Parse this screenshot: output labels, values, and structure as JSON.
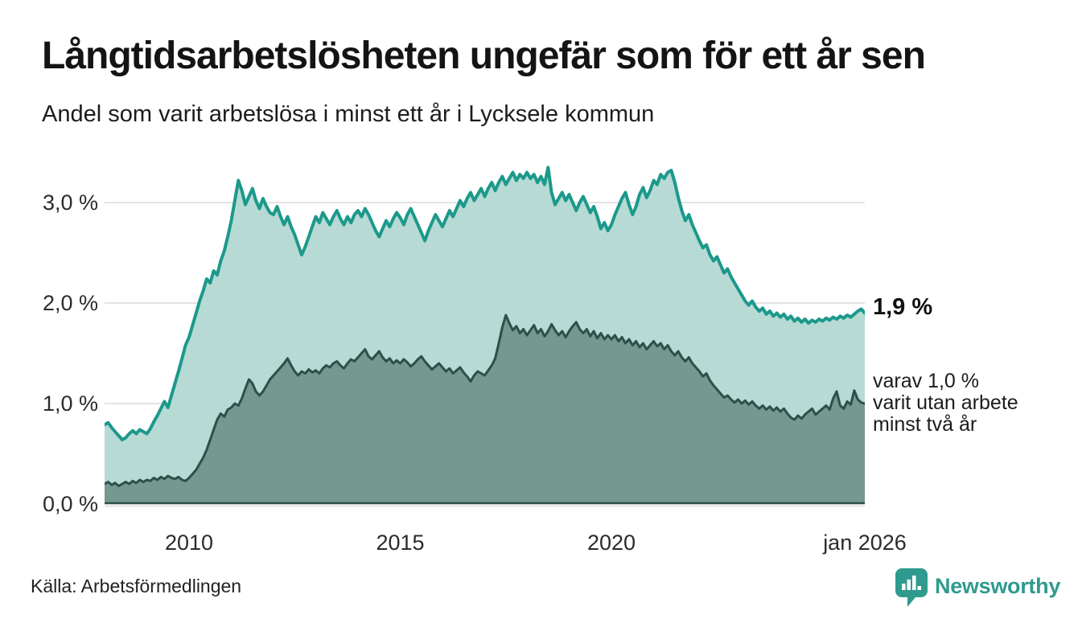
{
  "header": {
    "title": "Långtidsarbetslösheten ungefär som för ett år sen",
    "subtitle": "Andel som varit arbetslösa i minst ett år i Lycksele kommun"
  },
  "footer": {
    "source": "Källa: Arbetsförmedlingen",
    "brand": "Newsworthy"
  },
  "colors": {
    "background": "#ffffff",
    "grid": "#e5e3e3",
    "axis": "#2e4f4a",
    "series1_line": "#1b998b",
    "series1_fill": "#b7dad4",
    "series2_line": "#2e4f4a",
    "series2_fill": "#75988f",
    "brand_teal": "#2E9B8E",
    "text": "#1a1a1a"
  },
  "chart_data": {
    "type": "area",
    "title": "Långtidsarbetslösheten ungefär som för ett år sen",
    "subtitle": "Andel som varit arbetslösa i minst ett år i Lycksele kommun",
    "xlabel": "",
    "ylabel": "",
    "x_start_year": 2008.0,
    "x_end_year": 2026.0,
    "points_per_year": 12,
    "ylim": [
      0,
      3.5
    ],
    "grid": true,
    "legend_position": "none",
    "y_ticks": [
      {
        "label": "0,0 %",
        "value": 0.0
      },
      {
        "label": "1,0 %",
        "value": 1.0
      },
      {
        "label": "2,0 %",
        "value": 2.0
      },
      {
        "label": "3,0 %",
        "value": 3.0
      }
    ],
    "x_ticks": [
      {
        "label": "2010",
        "year": 2010
      },
      {
        "label": "2015",
        "year": 2015
      },
      {
        "label": "2020",
        "year": 2020
      },
      {
        "label": "jan 2026",
        "year": 2026
      }
    ],
    "end_labels": {
      "primary": "1,9 %",
      "secondary_lines": [
        "varav 1,0 %",
        "varit utan arbete",
        "minst två år"
      ]
    },
    "series": [
      {
        "name": "Arbetslösa minst ett år",
        "end_value_label": "1,9 %",
        "line_color": "#1b998b",
        "fill_color": "#b7dad4",
        "line_width": 4,
        "values": [
          0.79,
          0.81,
          0.76,
          0.72,
          0.68,
          0.64,
          0.66,
          0.7,
          0.73,
          0.7,
          0.74,
          0.72,
          0.7,
          0.75,
          0.82,
          0.88,
          0.95,
          1.02,
          0.96,
          1.08,
          1.2,
          1.32,
          1.45,
          1.58,
          1.66,
          1.78,
          1.9,
          2.02,
          2.12,
          2.24,
          2.2,
          2.32,
          2.28,
          2.42,
          2.52,
          2.66,
          2.82,
          3.02,
          3.22,
          3.12,
          2.98,
          3.06,
          3.14,
          3.02,
          2.94,
          3.04,
          2.96,
          2.9,
          2.88,
          2.96,
          2.86,
          2.78,
          2.86,
          2.76,
          2.68,
          2.58,
          2.48,
          2.56,
          2.66,
          2.76,
          2.86,
          2.8,
          2.9,
          2.84,
          2.78,
          2.86,
          2.92,
          2.84,
          2.78,
          2.86,
          2.8,
          2.88,
          2.92,
          2.86,
          2.94,
          2.88,
          2.8,
          2.72,
          2.66,
          2.74,
          2.82,
          2.76,
          2.84,
          2.9,
          2.85,
          2.78,
          2.88,
          2.94,
          2.86,
          2.78,
          2.7,
          2.62,
          2.72,
          2.8,
          2.88,
          2.82,
          2.76,
          2.84,
          2.92,
          2.86,
          2.94,
          3.02,
          2.96,
          3.04,
          3.1,
          3.02,
          3.08,
          3.14,
          3.06,
          3.14,
          3.2,
          3.12,
          3.2,
          3.26,
          3.18,
          3.24,
          3.3,
          3.22,
          3.28,
          3.24,
          3.3,
          3.24,
          3.28,
          3.2,
          3.26,
          3.18,
          3.35,
          3.1,
          2.98,
          3.04,
          3.1,
          3.02,
          3.08,
          3.0,
          2.92,
          3.0,
          3.06,
          2.98,
          2.9,
          2.96,
          2.86,
          2.74,
          2.8,
          2.72,
          2.78,
          2.88,
          2.96,
          3.04,
          3.1,
          2.98,
          2.88,
          2.96,
          3.08,
          3.15,
          3.05,
          3.12,
          3.22,
          3.18,
          3.28,
          3.24,
          3.3,
          3.32,
          3.2,
          3.05,
          2.92,
          2.82,
          2.88,
          2.78,
          2.7,
          2.62,
          2.55,
          2.58,
          2.48,
          2.42,
          2.46,
          2.38,
          2.3,
          2.34,
          2.26,
          2.2,
          2.14,
          2.08,
          2.02,
          1.98,
          2.02,
          1.96,
          1.92,
          1.95,
          1.89,
          1.92,
          1.87,
          1.9,
          1.86,
          1.89,
          1.84,
          1.87,
          1.82,
          1.85,
          1.81,
          1.84,
          1.8,
          1.83,
          1.81,
          1.84,
          1.82,
          1.85,
          1.83,
          1.86,
          1.84,
          1.87,
          1.85,
          1.88,
          1.86,
          1.89,
          1.92,
          1.94,
          1.9
        ]
      },
      {
        "name": "Arbetslösa minst två år",
        "end_value_label": "1,0 %",
        "line_color": "#2e4f4a",
        "fill_color": "#75988f",
        "line_width": 3,
        "values": [
          0.2,
          0.22,
          0.19,
          0.21,
          0.18,
          0.2,
          0.22,
          0.2,
          0.23,
          0.21,
          0.24,
          0.22,
          0.24,
          0.23,
          0.26,
          0.24,
          0.27,
          0.25,
          0.28,
          0.26,
          0.25,
          0.27,
          0.24,
          0.23,
          0.26,
          0.3,
          0.34,
          0.4,
          0.46,
          0.54,
          0.64,
          0.74,
          0.84,
          0.9,
          0.87,
          0.94,
          0.96,
          1.0,
          0.98,
          1.05,
          1.15,
          1.24,
          1.2,
          1.12,
          1.08,
          1.12,
          1.18,
          1.24,
          1.28,
          1.32,
          1.36,
          1.4,
          1.45,
          1.38,
          1.32,
          1.28,
          1.32,
          1.3,
          1.34,
          1.31,
          1.33,
          1.3,
          1.35,
          1.38,
          1.36,
          1.4,
          1.42,
          1.38,
          1.35,
          1.4,
          1.44,
          1.42,
          1.46,
          1.5,
          1.54,
          1.47,
          1.44,
          1.48,
          1.52,
          1.46,
          1.42,
          1.45,
          1.4,
          1.43,
          1.4,
          1.44,
          1.41,
          1.37,
          1.4,
          1.44,
          1.47,
          1.42,
          1.38,
          1.34,
          1.37,
          1.4,
          1.36,
          1.32,
          1.35,
          1.3,
          1.33,
          1.36,
          1.31,
          1.27,
          1.22,
          1.28,
          1.32,
          1.3,
          1.28,
          1.33,
          1.38,
          1.45,
          1.6,
          1.76,
          1.88,
          1.8,
          1.73,
          1.77,
          1.7,
          1.74,
          1.68,
          1.73,
          1.78,
          1.7,
          1.74,
          1.67,
          1.72,
          1.79,
          1.73,
          1.68,
          1.72,
          1.66,
          1.72,
          1.77,
          1.81,
          1.74,
          1.7,
          1.74,
          1.67,
          1.72,
          1.65,
          1.7,
          1.64,
          1.68,
          1.64,
          1.68,
          1.62,
          1.66,
          1.6,
          1.64,
          1.58,
          1.62,
          1.56,
          1.6,
          1.54,
          1.58,
          1.62,
          1.57,
          1.6,
          1.54,
          1.58,
          1.52,
          1.48,
          1.52,
          1.46,
          1.42,
          1.46,
          1.4,
          1.36,
          1.32,
          1.27,
          1.3,
          1.23,
          1.18,
          1.14,
          1.1,
          1.06,
          1.08,
          1.04,
          1.01,
          1.04,
          1.0,
          1.03,
          0.99,
          1.02,
          0.98,
          0.95,
          0.98,
          0.94,
          0.97,
          0.93,
          0.96,
          0.92,
          0.95,
          0.9,
          0.86,
          0.84,
          0.88,
          0.85,
          0.89,
          0.92,
          0.95,
          0.89,
          0.92,
          0.95,
          0.98,
          0.94,
          1.05,
          1.12,
          0.98,
          0.95,
          1.02,
          0.99,
          1.13,
          1.04,
          1.01,
          1.0
        ]
      }
    ]
  }
}
